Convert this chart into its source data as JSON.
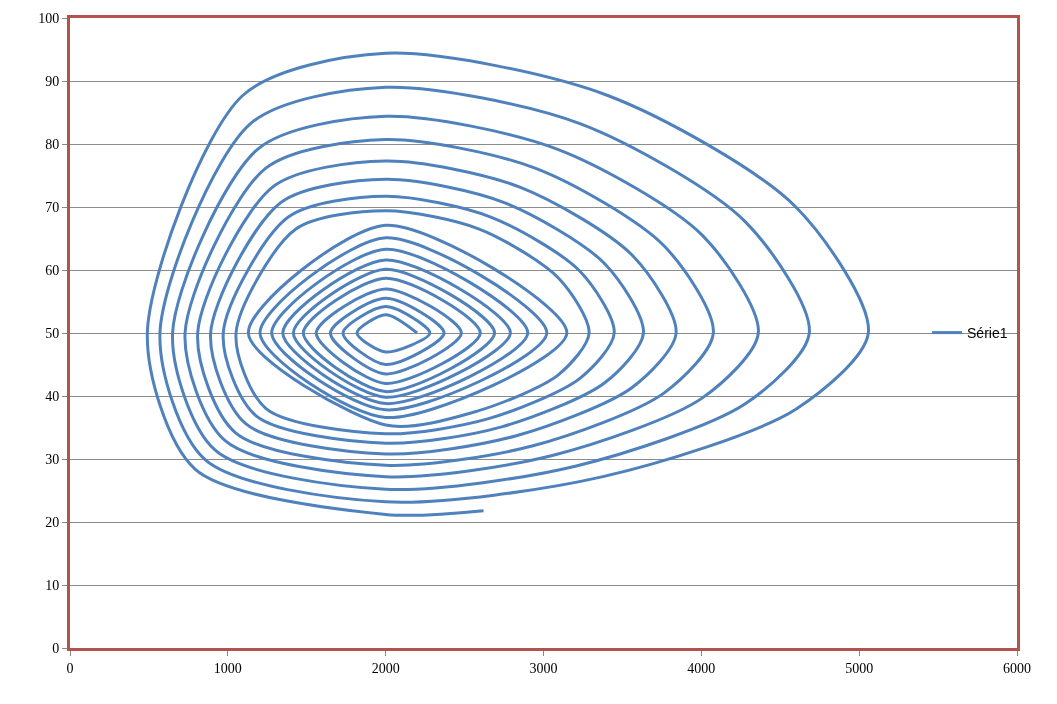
{
  "chart_data": {
    "type": "line",
    "series": [
      {
        "name": "Série1",
        "color": "#4f81bd",
        "x": [
          2199,
          2000,
          1818,
          2000,
          2280,
          2000,
          1730,
          2000,
          2370,
          2000,
          1650,
          2000,
          2480,
          2000,
          1560,
          2000,
          2600,
          2000,
          1478,
          2000,
          2690,
          2000,
          1415,
          2000,
          2790,
          2000,
          1348,
          2000,
          2900,
          2000,
          1278,
          2000,
          3021,
          2000,
          1204,
          2000,
          3148,
          2000,
          1130,
          2000,
          2580,
          3096,
          3289,
          3096,
          2593,
          2000,
          1431,
          1052,
          1242,
          2000,
          2652,
          3231,
          3448,
          3231,
          2666,
          2000,
          1383,
          971,
          1177,
          2000,
          2735,
          3388,
          3633,
          3388,
          2751,
          2000,
          1335,
          891,
          1113,
          2000,
          2828,
          3564,
          3840,
          3564,
          2846,
          2000,
          1285,
          809,
          1047,
          2000,
          2934,
          3765,
          4076,
          3765,
          2955,
          2000,
          1237,
          729,
          983,
          2000,
          3062,
          4007,
          4361,
          4007,
          3086,
          2000,
          1190,
          650,
          920,
          2000,
          3208,
          4281,
          4684,
          4281,
          3235,
          2000,
          1142,
          570,
          856,
          2000,
          3376,
          4599,
          5058,
          4599,
          3407,
          2000,
          1094,
          490,
          792,
          2000,
          2620
        ],
        "values": [
          50,
          52.9,
          50,
          47.0,
          50,
          54.2,
          50,
          45.0,
          50,
          55.5,
          50,
          43.5,
          50,
          57.0,
          50,
          42.0,
          50,
          58.7,
          50,
          40.7,
          50,
          60.1,
          50,
          39.8,
          50,
          61.6,
          50,
          38.8,
          50,
          63.3,
          50,
          37.8,
          50,
          65.1,
          50,
          36.6,
          50,
          67.1,
          50,
          35.4,
          37.6,
          43.4,
          50,
          58.7,
          66.5,
          69.4,
          66.5,
          50,
          38.0,
          34.0,
          36.4,
          42.8,
          50,
          59.8,
          68.4,
          71.7,
          68.4,
          50,
          36.9,
          32.5,
          35.1,
          42.1,
          50,
          61.0,
          70.7,
          74.4,
          70.7,
          50,
          35.6,
          30.8,
          33.7,
          41.4,
          50,
          62.3,
          73.2,
          77.3,
          73.2,
          50,
          34.2,
          29.0,
          32.1,
          40.5,
          50,
          63.8,
          76.1,
          80.7,
          76.1,
          50,
          32.9,
          27.2,
          30.6,
          39.7,
          50,
          65.5,
          79.2,
          84.4,
          79.2,
          50,
          31.4,
          25.2,
          28.9,
          38.8,
          50,
          67.6,
          83.2,
          89.0,
          83.2,
          50,
          29.9,
          23.2,
          27.2,
          37.9,
          50,
          70.0,
          87.7,
          94.4,
          87.7,
          50,
          28.4,
          21.2,
          21.8
        ]
      }
    ],
    "xlim": [
      0,
      6000
    ],
    "xticks": [
      0,
      1000,
      2000,
      3000,
      4000,
      5000,
      6000
    ],
    "ylim": [
      0,
      100
    ],
    "yticks": [
      0,
      10,
      20,
      30,
      40,
      50,
      60,
      70,
      80,
      90,
      100
    ],
    "grid": "y",
    "legend": "right",
    "line_style": "solid",
    "marker": "none"
  }
}
